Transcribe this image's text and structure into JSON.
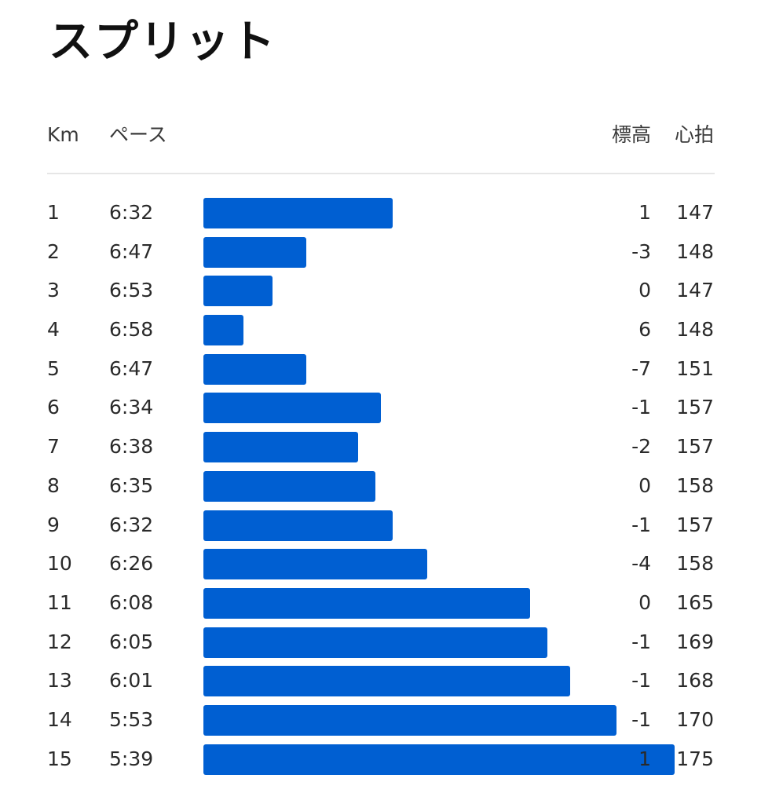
{
  "title": "スプリット",
  "columns": {
    "km": "Km",
    "pace": "ペース",
    "elevation": "標高",
    "heart_rate": "心拍"
  },
  "colors": {
    "bar": "#005fd2",
    "divider": "#e6e6e6"
  },
  "splits": [
    {
      "km": "1",
      "pace": "6:32",
      "elevation": "1",
      "heart_rate": "147"
    },
    {
      "km": "2",
      "pace": "6:47",
      "elevation": "-3",
      "heart_rate": "148"
    },
    {
      "km": "3",
      "pace": "6:53",
      "elevation": "0",
      "heart_rate": "147"
    },
    {
      "km": "4",
      "pace": "6:58",
      "elevation": "6",
      "heart_rate": "148"
    },
    {
      "km": "5",
      "pace": "6:47",
      "elevation": "-7",
      "heart_rate": "151"
    },
    {
      "km": "6",
      "pace": "6:34",
      "elevation": "-1",
      "heart_rate": "157"
    },
    {
      "km": "7",
      "pace": "6:38",
      "elevation": "-2",
      "heart_rate": "157"
    },
    {
      "km": "8",
      "pace": "6:35",
      "elevation": "0",
      "heart_rate": "158"
    },
    {
      "km": "9",
      "pace": "6:32",
      "elevation": "-1",
      "heart_rate": "157"
    },
    {
      "km": "10",
      "pace": "6:26",
      "elevation": "-4",
      "heart_rate": "158"
    },
    {
      "km": "11",
      "pace": "6:08",
      "elevation": "0",
      "heart_rate": "165"
    },
    {
      "km": "12",
      "pace": "6:05",
      "elevation": "-1",
      "heart_rate": "169"
    },
    {
      "km": "13",
      "pace": "6:01",
      "elevation": "-1",
      "heart_rate": "168"
    },
    {
      "km": "14",
      "pace": "5:53",
      "elevation": "-1",
      "heart_rate": "170"
    },
    {
      "km": "15",
      "pace": "5:39",
      "elevation": "1",
      "heart_rate": "175"
    }
  ]
}
